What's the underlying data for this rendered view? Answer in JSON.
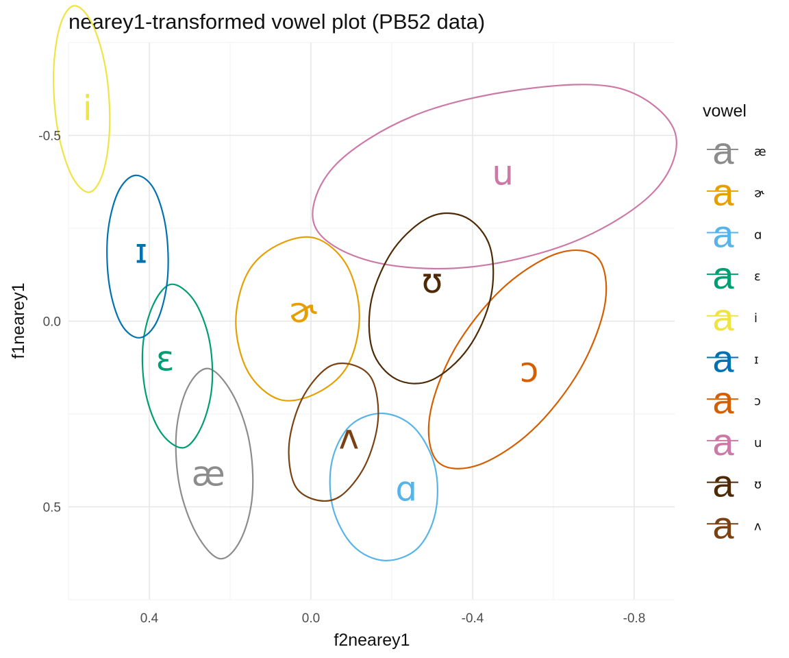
{
  "chart_data": {
    "type": "scatter",
    "title": "nearey1-transformed vowel plot (PB52 data)",
    "xlabel": "f2nearey1",
    "ylabel": "f1nearey1",
    "x_reversed": true,
    "y_reversed": true,
    "xlim": [
      0.6,
      -0.9
    ],
    "ylim": [
      -0.75,
      0.75
    ],
    "x_ticks": [
      {
        "value": 0.4,
        "label": "0.4"
      },
      {
        "value": 0.0,
        "label": "0.0"
      },
      {
        "value": -0.4,
        "label": "-0.4"
      },
      {
        "value": -0.8,
        "label": "-0.8"
      }
    ],
    "y_ticks": [
      {
        "value": -0.5,
        "label": "-0.5"
      },
      {
        "value": 0.0,
        "label": "0.0"
      },
      {
        "value": 0.5,
        "label": "0.5"
      }
    ],
    "grid": true,
    "legend": {
      "title": "vowel",
      "position": "right",
      "key_glyph": "a"
    },
    "series": [
      {
        "name": "æ",
        "color": "#8c8c8c",
        "label_at": [
          0.254,
          0.41
        ],
        "ellipse_points": [
          [
            0.254,
            0.1277
          ],
          [
            0.305,
            0.1785
          ],
          [
            0.333,
            0.2977
          ],
          [
            0.325,
            0.4454
          ],
          [
            0.283,
            0.5729
          ],
          [
            0.225,
            0.6395
          ],
          [
            0.174,
            0.5887
          ],
          [
            0.145,
            0.4695
          ],
          [
            0.153,
            0.3218
          ],
          [
            0.195,
            0.1943
          ]
        ]
      },
      {
        "name": "ɚ",
        "color": "#e69f00",
        "label_at": [
          0.02,
          -0.03
        ],
        "ellipse_points": [
          [
            0.083,
            -0.2044
          ],
          [
            0.157,
            -0.1293
          ],
          [
            0.186,
            0.004
          ],
          [
            0.155,
            0.1378
          ],
          [
            0.077,
            0.2112
          ],
          [
            -0.017,
            0.1924
          ],
          [
            -0.092,
            0.1173
          ],
          [
            -0.12,
            -0.0161
          ],
          [
            -0.089,
            -0.1499
          ],
          [
            -0.011,
            -0.2233
          ]
        ]
      },
      {
        "name": "ɑ",
        "color": "#56b4e9",
        "label_at": [
          -0.236,
          0.45
        ],
        "ellipse_points": [
          [
            -0.179,
            0.2484
          ],
          [
            -0.098,
            0.2805
          ],
          [
            -0.052,
            0.3771
          ],
          [
            -0.054,
            0.5009
          ],
          [
            -0.104,
            0.6043
          ],
          [
            -0.182,
            0.6445
          ],
          [
            -0.263,
            0.6124
          ],
          [
            -0.308,
            0.5158
          ],
          [
            -0.307,
            0.392
          ],
          [
            -0.257,
            0.2886
          ]
        ]
      },
      {
        "name": "ɛ",
        "color": "#009e73",
        "label_at": [
          0.361,
          0.1
        ],
        "ellipse_points": [
          [
            0.346,
            -0.099
          ],
          [
            0.391,
            -0.0426
          ],
          [
            0.416,
            0.0665
          ],
          [
            0.409,
            0.1938
          ],
          [
            0.372,
            0.2986
          ],
          [
            0.316,
            0.3409
          ],
          [
            0.271,
            0.2845
          ],
          [
            0.245,
            0.1754
          ],
          [
            0.252,
            0.0481
          ],
          [
            0.29,
            -0.0567
          ]
        ]
      },
      {
        "name": "i",
        "color": "#f0e442",
        "label_at": [
          0.553,
          -0.575
        ],
        "ellipse_points": [
          [
            0.586,
            -0.8489
          ],
          [
            0.621,
            -0.7947
          ],
          [
            0.637,
            -0.6687
          ],
          [
            0.627,
            -0.5167
          ],
          [
            0.593,
            -0.3937
          ],
          [
            0.549,
            -0.3469
          ],
          [
            0.514,
            -0.4011
          ],
          [
            0.498,
            -0.5271
          ],
          [
            0.508,
            -0.6791
          ],
          [
            0.542,
            -0.8021
          ]
        ]
      },
      {
        "name": "ɪ",
        "color": "#0072b2",
        "label_at": [
          0.42,
          -0.19
        ],
        "ellipse_points": [
          [
            0.435,
            -0.3923
          ],
          [
            0.478,
            -0.3458
          ],
          [
            0.503,
            -0.2331
          ],
          [
            0.499,
            -0.0974
          ],
          [
            0.469,
            0.0089
          ],
          [
            0.423,
            0.0447
          ],
          [
            0.38,
            -0.0018
          ],
          [
            0.355,
            -0.1145
          ],
          [
            0.359,
            -0.2502
          ],
          [
            0.389,
            -0.3565
          ]
        ]
      },
      {
        "name": "ɔ",
        "color": "#d55e00",
        "label_at": [
          -0.54,
          0.13
        ],
        "ellipse_points": [
          [
            -0.709,
            -0.1713
          ],
          [
            -0.728,
            -0.0485
          ],
          [
            -0.666,
            0.13
          ],
          [
            -0.547,
            0.2945
          ],
          [
            -0.411,
            0.3886
          ],
          [
            -0.313,
            0.3777
          ],
          [
            -0.294,
            0.2549
          ],
          [
            -0.355,
            0.0764
          ],
          [
            -0.474,
            -0.0881
          ],
          [
            -0.61,
            -0.1822
          ]
        ]
      },
      {
        "name": "u",
        "color": "#cc79a7",
        "label_at": [
          -0.475,
          -0.4
        ],
        "ellipse_points": [
          [
            -0.765,
            -0.6262
          ],
          [
            -0.9,
            -0.511
          ],
          [
            -0.853,
            -0.3537
          ],
          [
            -0.656,
            -0.2161
          ],
          [
            -0.389,
            -0.145
          ],
          [
            -0.145,
            -0.1622
          ],
          [
            -0.009,
            -0.2574
          ],
          [
            -0.056,
            -0.4147
          ],
          [
            -0.253,
            -0.5523
          ],
          [
            -0.52,
            -0.6234
          ]
        ]
      },
      {
        "name": "ʊ",
        "color": "#4d2a05",
        "label_at": [
          -0.3,
          -0.11
        ],
        "ellipse_points": [
          [
            -0.384,
            -0.2787
          ],
          [
            -0.443,
            -0.2
          ],
          [
            -0.445,
            -0.0638
          ],
          [
            -0.389,
            0.0733
          ],
          [
            -0.298,
            0.1591
          ],
          [
            -0.211,
            0.1563
          ],
          [
            -0.152,
            0.0775
          ],
          [
            -0.15,
            -0.0586
          ],
          [
            -0.206,
            -0.1957
          ],
          [
            -0.297,
            -0.2815
          ]
        ]
      },
      {
        "name": "ʌ",
        "color": "#7a4213",
        "label_at": [
          -0.094,
          0.31
        ],
        "ellipse_points": [
          [
            -0.101,
            0.117
          ],
          [
            -0.152,
            0.1584
          ],
          [
            -0.166,
            0.2669
          ],
          [
            -0.134,
            0.3884
          ],
          [
            -0.072,
            0.4718
          ],
          [
            -0.01,
            0.4806
          ],
          [
            0.041,
            0.4392
          ],
          [
            0.054,
            0.3307
          ],
          [
            0.022,
            0.2092
          ],
          [
            -0.04,
            0.1258
          ]
        ]
      }
    ]
  }
}
